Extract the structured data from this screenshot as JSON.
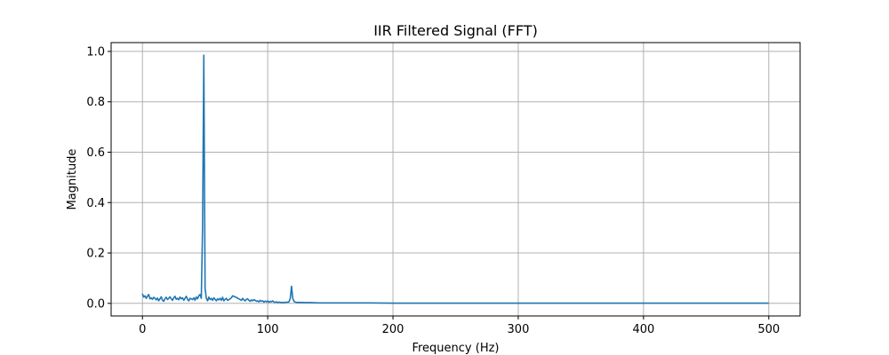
{
  "chart_data": {
    "type": "line",
    "title": "IIR Filtered Signal (FFT)",
    "xlabel": "Frequency (Hz)",
    "ylabel": "Magnitude",
    "xlim": [
      -25,
      525
    ],
    "ylim": [
      -0.05,
      1.035
    ],
    "xticks": [
      0,
      100,
      200,
      300,
      400,
      500
    ],
    "yticks": [
      0.0,
      0.2,
      0.4,
      0.6,
      0.8,
      1.0
    ],
    "xtick_labels": [
      "0",
      "100",
      "200",
      "300",
      "400",
      "500"
    ],
    "ytick_labels": [
      "0.0",
      "0.2",
      "0.4",
      "0.6",
      "0.8",
      "1.0"
    ],
    "grid": true,
    "series_color": "#1f77b4",
    "series": [
      {
        "x": [
          0,
          1,
          2,
          3,
          4,
          5,
          6,
          7,
          8,
          9,
          10,
          11,
          12,
          13,
          14,
          15,
          16,
          17,
          18,
          19,
          20,
          21,
          22,
          23,
          24,
          25,
          26,
          27,
          28,
          29,
          30,
          31,
          32,
          33,
          34,
          35,
          36,
          37,
          38,
          39,
          40,
          41,
          42,
          43,
          44,
          45,
          46,
          47,
          48,
          49,
          50,
          51,
          52,
          53,
          54,
          55,
          56,
          57,
          58,
          59,
          60,
          61,
          62,
          63,
          64,
          65,
          66,
          67,
          68,
          69,
          70,
          71,
          72,
          73,
          74,
          75,
          76,
          77,
          78,
          79,
          80,
          81,
          82,
          83,
          84,
          85,
          86,
          87,
          88,
          89,
          90,
          91,
          92,
          93,
          94,
          95,
          96,
          97,
          98,
          99,
          100,
          101,
          102,
          103,
          104,
          105,
          106,
          107,
          108,
          109,
          110,
          111,
          112,
          113,
          114,
          115,
          116,
          117,
          118,
          119,
          120,
          121,
          122,
          123,
          124,
          125,
          130,
          135,
          140,
          150,
          160,
          180,
          200,
          250,
          300,
          350,
          400,
          450,
          500
        ],
        "y": [
          0.038,
          0.025,
          0.03,
          0.02,
          0.028,
          0.035,
          0.018,
          0.022,
          0.016,
          0.024,
          0.02,
          0.014,
          0.021,
          0.01,
          0.018,
          0.026,
          0.012,
          0.008,
          0.019,
          0.024,
          0.015,
          0.02,
          0.026,
          0.018,
          0.012,
          0.022,
          0.028,
          0.016,
          0.02,
          0.014,
          0.025,
          0.018,
          0.022,
          0.012,
          0.02,
          0.028,
          0.016,
          0.01,
          0.02,
          0.018,
          0.015,
          0.022,
          0.012,
          0.025,
          0.018,
          0.03,
          0.035,
          0.02,
          0.3,
          0.985,
          0.06,
          0.02,
          0.01,
          0.025,
          0.015,
          0.02,
          0.012,
          0.022,
          0.016,
          0.01,
          0.018,
          0.014,
          0.02,
          0.012,
          0.024,
          0.01,
          0.016,
          0.02,
          0.012,
          0.015,
          0.018,
          0.022,
          0.03,
          0.028,
          0.025,
          0.024,
          0.02,
          0.018,
          0.015,
          0.012,
          0.02,
          0.014,
          0.01,
          0.016,
          0.018,
          0.012,
          0.008,
          0.014,
          0.01,
          0.015,
          0.012,
          0.008,
          0.01,
          0.006,
          0.012,
          0.008,
          0.01,
          0.005,
          0.009,
          0.006,
          0.01,
          0.004,
          0.008,
          0.006,
          0.01,
          0.005,
          0.004,
          0.006,
          0.003,
          0.005,
          0.004,
          0.003,
          0.004,
          0.003,
          0.004,
          0.005,
          0.004,
          0.006,
          0.02,
          0.068,
          0.02,
          0.008,
          0.005,
          0.004,
          0.003,
          0.004,
          0.003,
          0.003,
          0.002,
          0.002,
          0.002,
          0.002,
          0.001,
          0.001,
          0.001,
          0.001,
          0.001,
          0.001,
          0.001
        ]
      }
    ]
  }
}
